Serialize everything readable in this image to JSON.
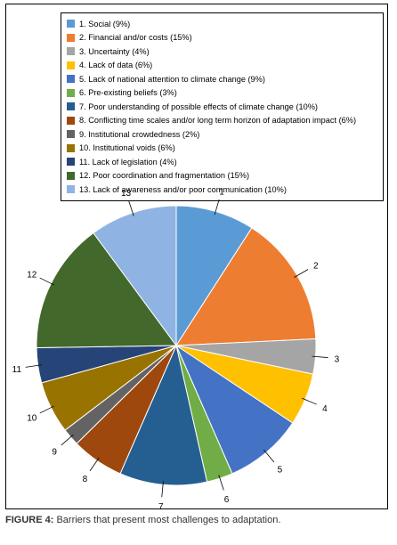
{
  "chart_data": {
    "type": "pie",
    "categories": [
      "1. Social (9%)",
      "2. Financial and/or costs (15%)",
      "3. Uncertainty (4%)",
      "4. Lack of data (6%)",
      "5. Lack of national attention to climate change (9%)",
      "6. Pre-existing beliefs (3%)",
      "7. Poor understanding of possible effects of climate change (10%)",
      "8. Conflicting time scales and/or long term horizon of adaptation impact (6%)",
      "9. Institutional crowdedness (2%)",
      "10. Institutional voids (6%)",
      "11. Lack of legislation (4%)",
      "12. Poor coordination and fragmentation (15%)",
      "13. Lack of awareness and/or poor communication (10%)"
    ],
    "slice_labels": [
      "1",
      "2",
      "3",
      "4",
      "5",
      "6",
      "7",
      "8",
      "9",
      "10",
      "11",
      "12",
      "13"
    ],
    "values": [
      9,
      15,
      4,
      6,
      9,
      3,
      10,
      6,
      2,
      6,
      4,
      15,
      10
    ],
    "colors": [
      "#5B9BD5",
      "#ED7D31",
      "#A5A5A5",
      "#FFC000",
      "#4472C4",
      "#70AD47",
      "#255E91",
      "#9E480E",
      "#636363",
      "#997300",
      "#264478",
      "#43682B",
      "#8FB4E3"
    ],
    "legend_position": "top"
  },
  "caption": {
    "figure_label": "FIGURE 4:",
    "text": " Barriers that present most challenges to adaptation."
  }
}
